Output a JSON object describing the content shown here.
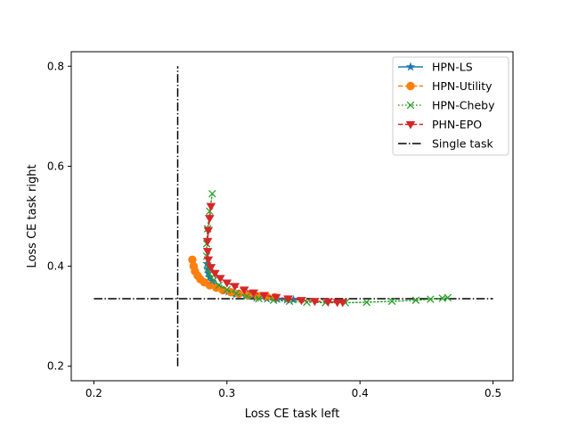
{
  "chart_data": {
    "type": "line",
    "title": "",
    "xlabel": "Loss CE task left",
    "ylabel": "Loss CE task right",
    "xlim": [
      0.183,
      0.515
    ],
    "ylim": [
      0.171,
      0.829
    ],
    "xticks": [
      0.2,
      0.3,
      0.4,
      0.5
    ],
    "yticks": [
      0.2,
      0.4,
      0.6,
      0.8
    ],
    "xtick_labels": [
      "0.2",
      "0.3",
      "0.4",
      "0.5"
    ],
    "ytick_labels": [
      "0.2",
      "0.4",
      "0.6",
      "0.8"
    ],
    "grid": false,
    "legend_position": "top-right",
    "series": [
      {
        "name": "HPN-LS",
        "color": "#1f77b4",
        "linestyle": "solid",
        "marker": "star",
        "x": [
          0.285,
          0.2855,
          0.286,
          0.287,
          0.289,
          0.292,
          0.296,
          0.301,
          0.307,
          0.314,
          0.322,
          0.33,
          0.338,
          0.345,
          0.35
        ],
        "y": [
          0.405,
          0.395,
          0.386,
          0.378,
          0.37,
          0.362,
          0.355,
          0.349,
          0.344,
          0.34,
          0.337,
          0.335,
          0.334,
          0.333,
          0.333
        ]
      },
      {
        "name": "HPN-Utility",
        "color": "#ff7f0e",
        "linestyle": "dashed",
        "marker": "circle",
        "x": [
          0.274,
          0.275,
          0.276,
          0.278,
          0.28,
          0.283,
          0.287,
          0.292,
          0.297,
          0.303,
          0.309,
          0.316,
          0.323,
          0.33,
          0.336
        ],
        "y": [
          0.413,
          0.4,
          0.39,
          0.381,
          0.374,
          0.368,
          0.362,
          0.357,
          0.352,
          0.348,
          0.345,
          0.342,
          0.34,
          0.339,
          0.338
        ]
      },
      {
        "name": "HPN-Cheby",
        "color": "#2ca02c",
        "linestyle": "dotted",
        "marker": "x",
        "x": [
          0.289,
          0.287,
          0.2855,
          0.2848,
          0.2848,
          0.2855,
          0.287,
          0.29,
          0.294,
          0.3,
          0.307,
          0.315,
          0.324,
          0.335,
          0.347,
          0.36,
          0.374,
          0.389,
          0.405,
          0.424,
          0.442,
          0.453,
          0.462,
          0.466
        ],
        "y": [
          0.545,
          0.51,
          0.475,
          0.445,
          0.42,
          0.4,
          0.385,
          0.372,
          0.362,
          0.353,
          0.346,
          0.34,
          0.335,
          0.332,
          0.33,
          0.328,
          0.327,
          0.327,
          0.328,
          0.33,
          0.332,
          0.334,
          0.336,
          0.337
        ]
      },
      {
        "name": "PHN-EPO",
        "color": "#d62728",
        "linestyle": "dashed",
        "marker": "triangle-down",
        "x": [
          0.288,
          0.287,
          0.286,
          0.2855,
          0.2855,
          0.286,
          0.288,
          0.291,
          0.295,
          0.3,
          0.306,
          0.313,
          0.32,
          0.328,
          0.337,
          0.346,
          0.356,
          0.366,
          0.376,
          0.383,
          0.387
        ],
        "y": [
          0.52,
          0.496,
          0.472,
          0.45,
          0.43,
          0.413,
          0.398,
          0.386,
          0.376,
          0.367,
          0.36,
          0.353,
          0.347,
          0.342,
          0.338,
          0.335,
          0.332,
          0.33,
          0.329,
          0.328,
          0.328
        ]
      }
    ],
    "reference_lines": {
      "name": "Single task",
      "color": "#000000",
      "linestyle": "dashdot",
      "vertical": {
        "x": 0.263,
        "y_from": 0.2,
        "y_to": 0.8
      },
      "horizontal": {
        "y": 0.335,
        "x_from": 0.2,
        "x_to": 0.5
      }
    }
  }
}
